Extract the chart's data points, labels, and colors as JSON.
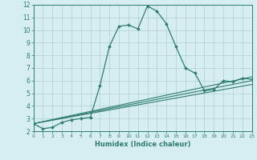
{
  "title": "",
  "xlabel": "Humidex (Indice chaleur)",
  "ylabel": "",
  "bg_color": "#d6eef0",
  "grid_color": "#b0cfd4",
  "line_color": "#2e7d6e",
  "xlim": [
    0,
    23
  ],
  "ylim": [
    2,
    12
  ],
  "xticks": [
    0,
    1,
    2,
    3,
    4,
    5,
    6,
    7,
    8,
    9,
    10,
    11,
    12,
    13,
    14,
    15,
    16,
    17,
    18,
    19,
    20,
    21,
    22,
    23
  ],
  "yticks": [
    2,
    3,
    4,
    5,
    6,
    7,
    8,
    9,
    10,
    11,
    12
  ],
  "curve1_x": [
    0,
    1,
    2,
    3,
    4,
    5,
    6,
    7,
    8,
    9,
    10,
    11,
    12,
    13,
    14,
    15,
    16,
    17,
    18,
    19,
    20,
    21,
    22,
    23
  ],
  "curve1_y": [
    2.6,
    2.2,
    2.3,
    2.7,
    2.9,
    3.0,
    3.1,
    5.6,
    8.7,
    10.3,
    10.4,
    10.1,
    11.9,
    11.5,
    10.5,
    8.7,
    7.0,
    6.6,
    5.2,
    5.3,
    6.0,
    5.9,
    6.2,
    6.1
  ],
  "line1_x": [
    0,
    23
  ],
  "line1_y": [
    2.6,
    6.3
  ],
  "line2_x": [
    0,
    23
  ],
  "line2_y": [
    2.6,
    6.0
  ],
  "line3_x": [
    0,
    23
  ],
  "line3_y": [
    2.6,
    5.7
  ]
}
